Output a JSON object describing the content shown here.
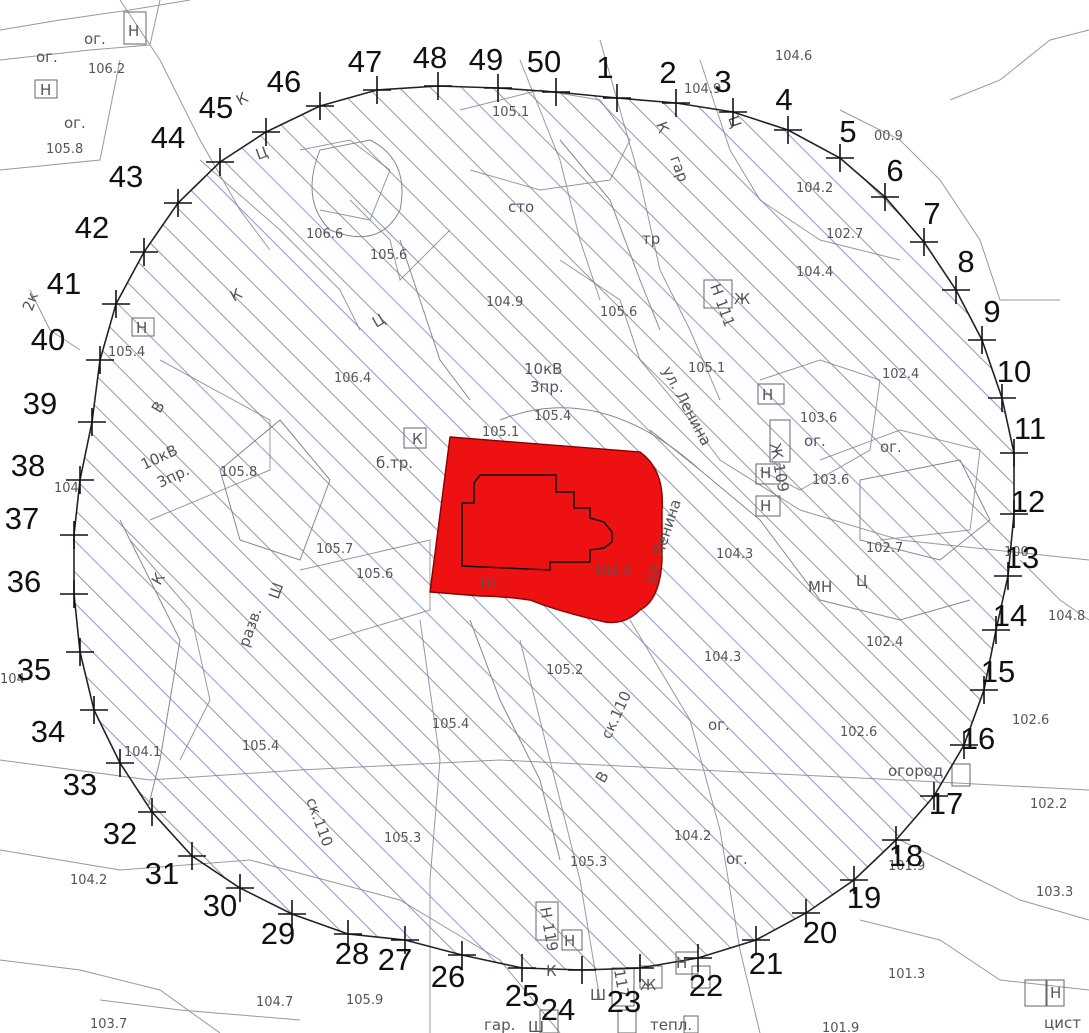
{
  "map": {
    "vertex_labels": [
      "1",
      "2",
      "3",
      "4",
      "5",
      "6",
      "7",
      "8",
      "9",
      "10",
      "11",
      "12",
      "13",
      "14",
      "15",
      "16",
      "17",
      "18",
      "19",
      "20",
      "21",
      "22",
      "23",
      "24",
      "25",
      "26",
      "27",
      "28",
      "29",
      "30",
      "31",
      "32",
      "33",
      "34",
      "35",
      "36",
      "37",
      "38",
      "39",
      "40",
      "41",
      "42",
      "43",
      "44",
      "45",
      "46",
      "47",
      "48",
      "49",
      "50"
    ],
    "elevations": [
      "106.2",
      "105.8",
      "104.6",
      "104.9",
      "00.9",
      "104.2",
      "102.7",
      "104.4",
      "105.1",
      "106.6",
      "105.6",
      "104.9",
      "105.6",
      "105.4",
      "106.4",
      "105.1",
      "105.4",
      "105.1",
      "102.4",
      "103.6",
      "103.6",
      "104.3",
      "102.7",
      "104.3",
      "105.8",
      "105.7",
      "105.6",
      "104.3",
      "102.4",
      "105.2",
      "102.6",
      "102.6",
      "105.4",
      "105.4",
      "104.1",
      "102.2",
      "105.3",
      "104.2",
      "105.3",
      "101.9",
      "103.3",
      "104.7",
      "105.9",
      "101.3",
      "103.7",
      "101.9",
      "104.2",
      "104",
      "104",
      "104.8",
      "100"
    ],
    "cad_labels": {
      "og": "ог.",
      "n": "Н",
      "k": "К",
      "c": "Ц",
      "sh": "Ш",
      "zh": "Ж",
      "v": "В",
      "razv": "разв.",
      "gar": "гар.",
      "gar_cap": "гар",
      "cto": "сто",
      "tr": "тр",
      "btr": "б.тр.",
      "kvl_10": "10кВ",
      "kvl_3": "3пр.",
      "kbox": "К",
      "street_1": "ул. Ленина",
      "street_2": "ул. Ленина",
      "ck_110_a": "ск.110",
      "ck_110_b": "ск.110",
      "ogorod": "огород",
      "mn": "МН",
      "tepl": "тепл.",
      "cist": "цист",
      "b2k": "2к",
      "zh109": "Ж 109",
      "n111": "Н 111",
      "n119": "Н 119",
      "n117": "117"
    },
    "colors": {
      "object_fill": "#ee1111",
      "object_stroke": "#880000",
      "hatch": "#6e7fb8",
      "boundary": "#222222",
      "base_lines": "#9a9a9a"
    }
  }
}
